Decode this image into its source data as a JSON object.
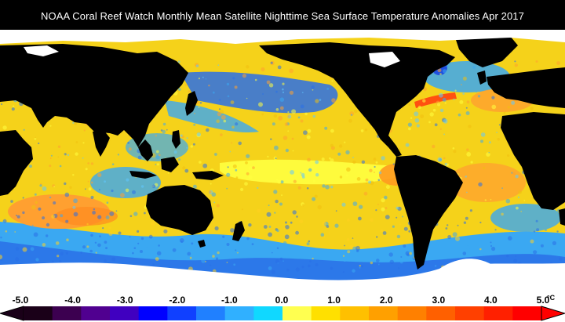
{
  "title": "NOAA Coral Reef Watch Monthly Mean Satellite Nighttime Sea Surface Temperature Anomalies     Apr 2017",
  "colors": {
    "land": "#000000",
    "ice": "#ffffff",
    "ocean_base": "#f5d21a",
    "warm": "#ffa020",
    "hot": "#ff6010",
    "neutral_yellow": "#ffff33",
    "cool": "#38a8f0",
    "cold": "#2060e0",
    "very_cold": "#0020c0"
  },
  "legend": {
    "ticks": [
      "-5.0",
      "-4.0",
      "-3.0",
      "-2.0",
      "-1.0",
      "0.0",
      "1.0",
      "2.0",
      "3.0",
      "4.0",
      "5.0"
    ],
    "unit": "°C",
    "swatches": [
      "#1a0018",
      "#3c0050",
      "#500090",
      "#4000c0",
      "#0000ff",
      "#1040ff",
      "#2080ff",
      "#30b0ff",
      "#10d8ff",
      "#ffff50",
      "#ffe000",
      "#ffc000",
      "#ffa000",
      "#ff8000",
      "#ff6000",
      "#ff4000",
      "#ff2000",
      "#ff0000"
    ]
  }
}
